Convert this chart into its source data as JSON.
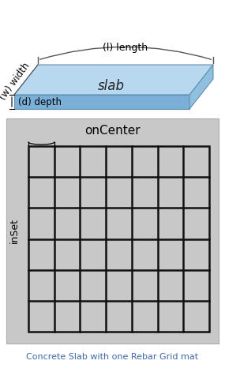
{
  "title": "Concrete Slab with one Rebar Grid mat",
  "title_color": "#4169aa",
  "slab_top_color": "#b8d8f0",
  "slab_front_color": "#7ab0d8",
  "slab_right_color": "#90c0e0",
  "slab_edge_color": "#6090b0",
  "grid_outer_color": "#c8c8c8",
  "grid_cell_color": "#c8c8c8",
  "grid_line_color": "#111111",
  "label_length": "(l) length",
  "label_width": "(w) width",
  "label_depth": "(d) depth",
  "label_onCenter": "onCenter",
  "label_inSet": "inSet",
  "n_cols": 7,
  "n_rows": 6,
  "fig_w": 2.85,
  "fig_h": 4.66,
  "dpi": 100
}
